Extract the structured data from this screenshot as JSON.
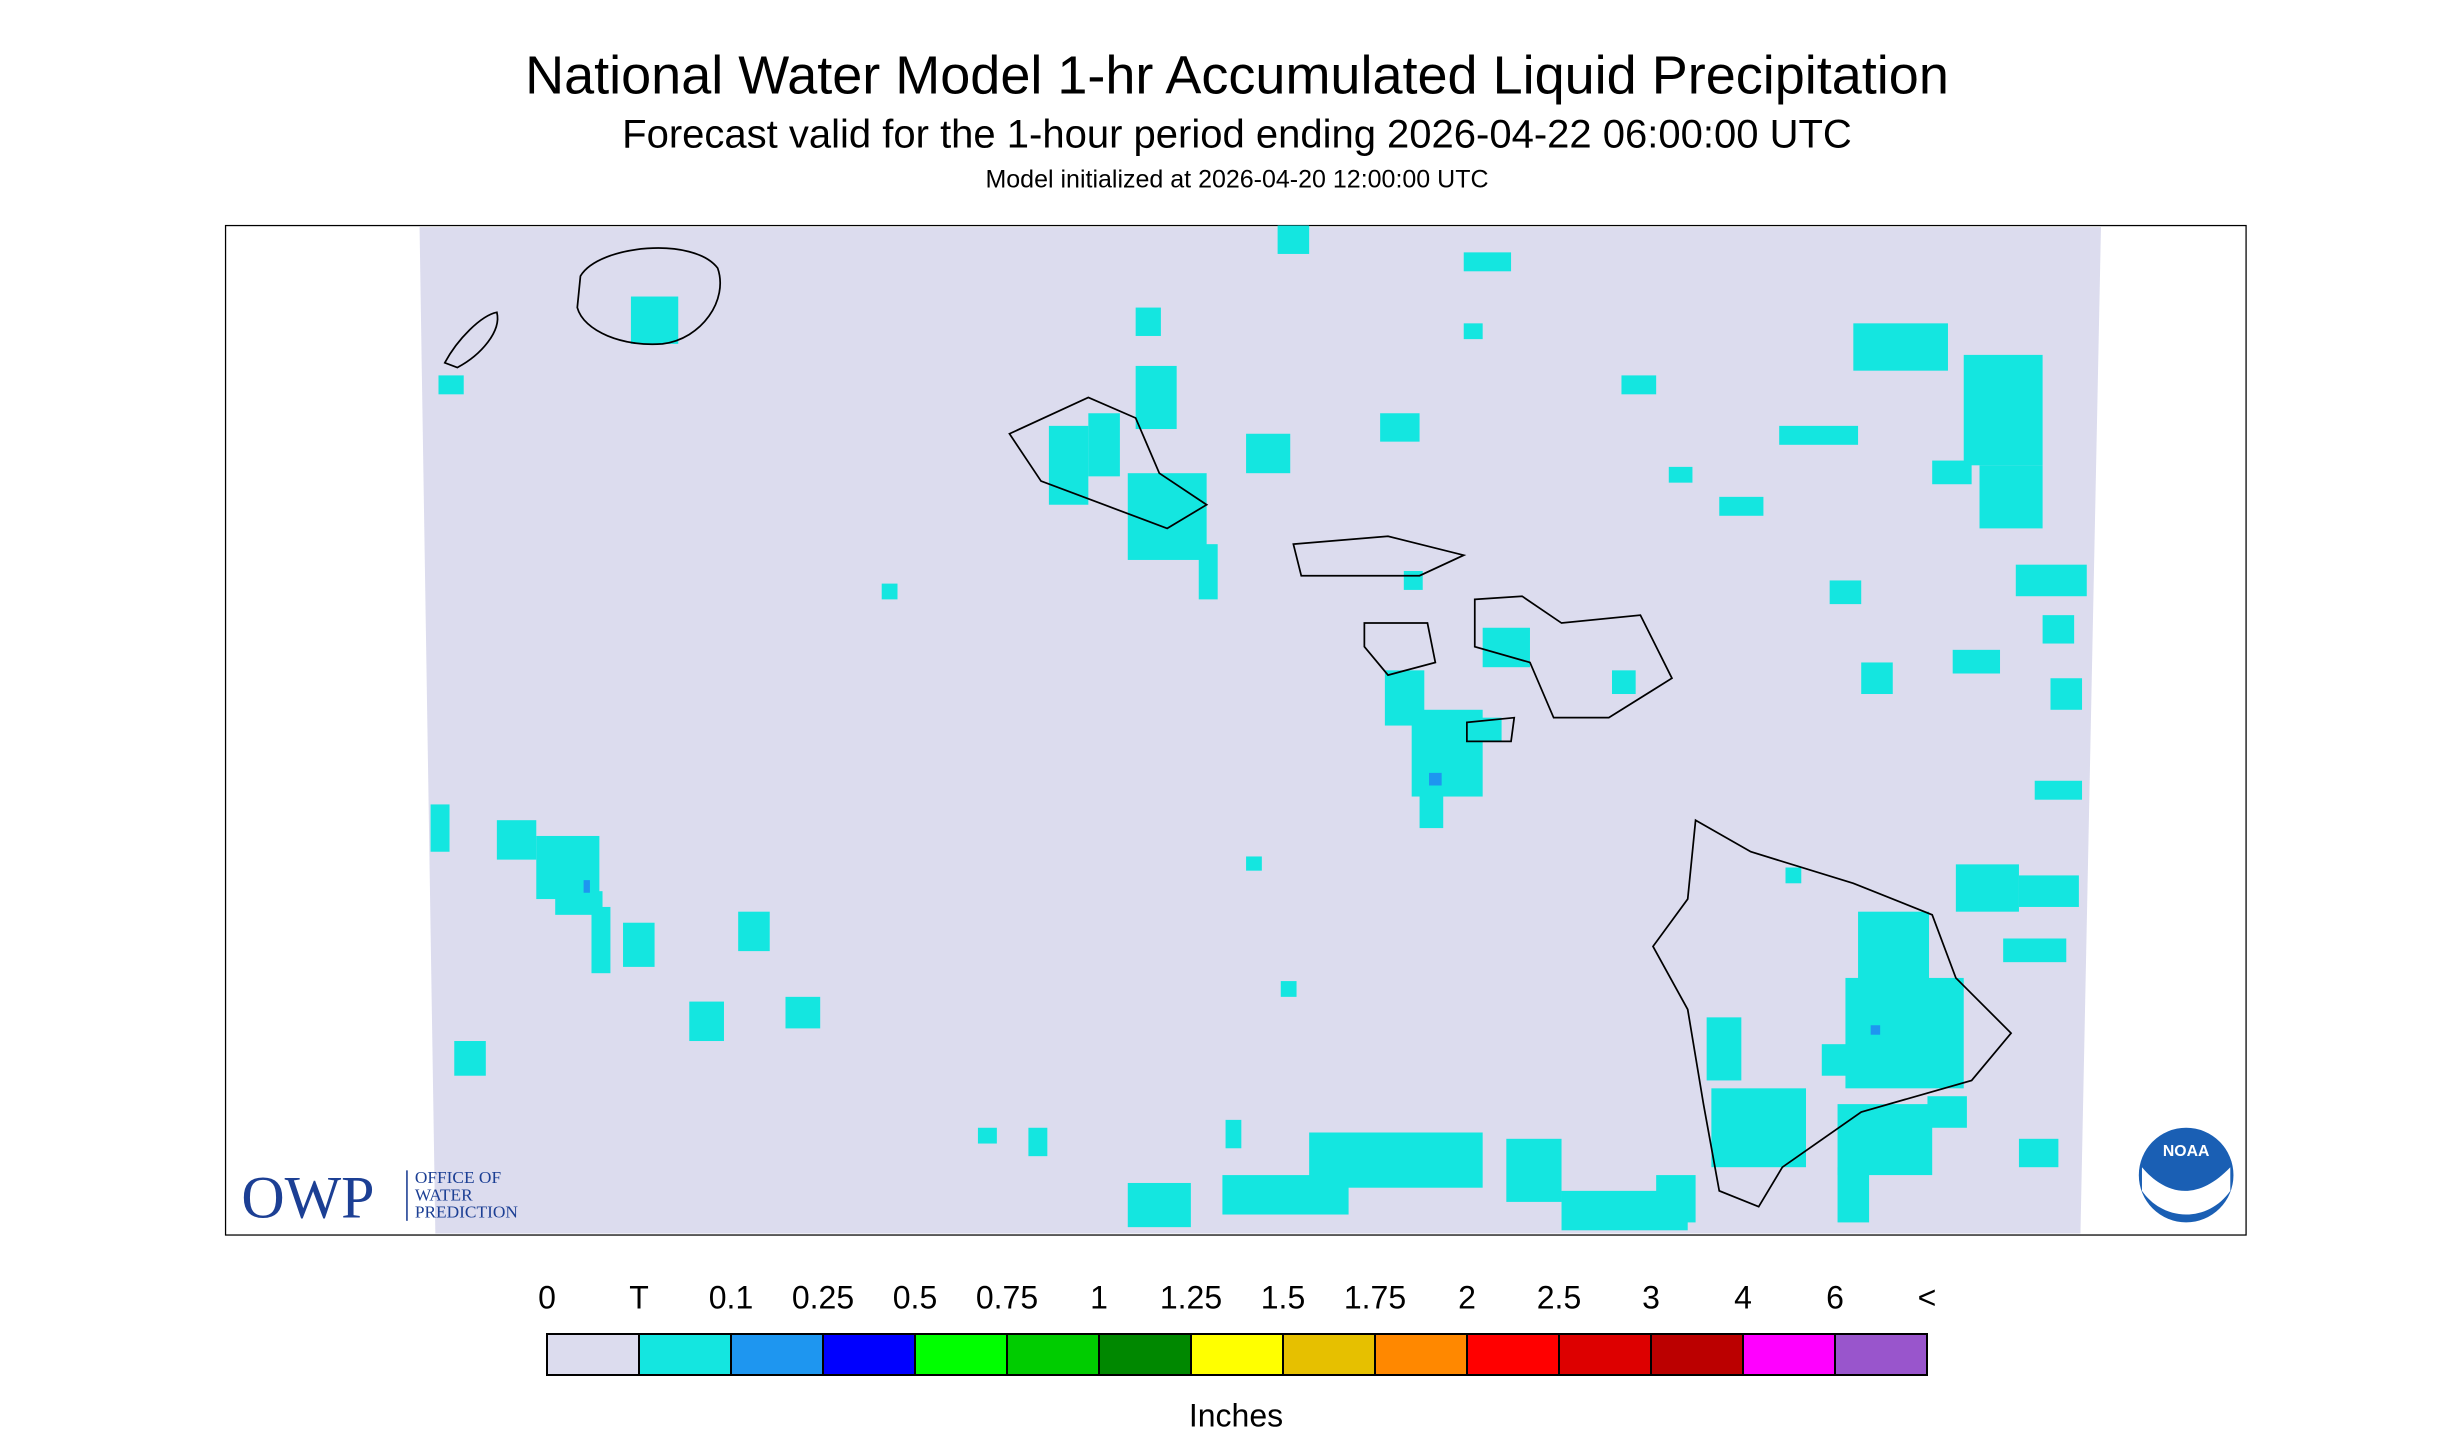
{
  "header": {
    "title": "National Water Model 1-hr Accumulated Liquid Precipitation",
    "subtitle": "Forecast valid for the 1-hour period ending 2026-04-22 06:00:00 UTC",
    "init": "Model initialized at 2026-04-20 12:00:00 UTC"
  },
  "logos": {
    "owp": "OWP",
    "owp_lines": [
      "OFFICE OF",
      "WATER",
      "PREDICTION"
    ],
    "noaa": "NOAA"
  },
  "legend": {
    "labels": [
      "0",
      "T",
      "0.1",
      "0.25",
      "0.5",
      "0.75",
      "1",
      "1.25",
      "1.5",
      "1.75",
      "2",
      "2.5",
      "3",
      "4",
      "6",
      "<"
    ],
    "colors": [
      "#dcdcee",
      "#14e6e0",
      "#1e96f0",
      "#0000ff",
      "#00ff00",
      "#00cc00",
      "#008800",
      "#ffff00",
      "#e6c000",
      "#ff8800",
      "#ff0000",
      "#dd0000",
      "#bb0000",
      "#ff00ff",
      "#9955cc"
    ],
    "unit": "Inches"
  }
}
